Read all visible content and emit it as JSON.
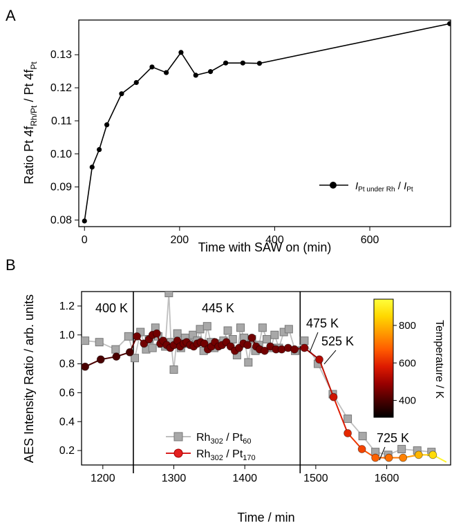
{
  "chart_data": [
    {
      "panel_label": "A",
      "type": "line",
      "xlabel": "Time with SAW on (min)",
      "ylabel": {
        "base": "Ratio Pt 4f",
        "sub1": "Rh/Pt",
        "mid": " / Pt 4f",
        "sub2": "Pt"
      },
      "xlim": [
        -12,
        770
      ],
      "ylim": [
        0.078,
        0.1405
      ],
      "xticks": [
        0,
        200,
        400,
        600
      ],
      "yticks": [
        0.08,
        0.09,
        0.1,
        0.11,
        0.12,
        0.13
      ],
      "ytick_labels": [
        "0.08",
        "0.09",
        "0.10",
        "0.11",
        "0.12",
        "0.13"
      ],
      "xtick_labels": [
        "0",
        "200",
        "400",
        "600"
      ],
      "series": [
        {
          "name_parts": {
            "a": "I",
            "b": "Pt under Rh",
            "c": " / ",
            "d": "I",
            "e": "Pt"
          },
          "color": "#000000",
          "x": [
            0,
            16,
            31,
            47,
            78,
            109,
            142,
            172,
            203,
            234,
            265,
            297,
            333,
            368,
            768
          ],
          "y": [
            0.0797,
            0.096,
            0.1013,
            0.1088,
            0.1182,
            0.1216,
            0.1263,
            0.1246,
            0.1307,
            0.1238,
            0.1249,
            0.1275,
            0.1275,
            0.1274,
            0.1394
          ]
        }
      ],
      "legend": "bottom-right"
    },
    {
      "panel_label": "B",
      "type": "line",
      "xlabel": "Time / min",
      "ylabel": "AES Intensity Ratio / arb. units",
      "xlim": [
        1170,
        1690
      ],
      "ylim": [
        0.1,
        1.3
      ],
      "xticks": [
        1200,
        1300,
        1400,
        1500,
        1600
      ],
      "xtick_labels": [
        "1200",
        "1300",
        "1400",
        "1500",
        "1600"
      ],
      "yticks": [
        0.2,
        0.4,
        0.6,
        0.8,
        1.0,
        1.2
      ],
      "ytick_labels": [
        "0.2",
        "0.4",
        "0.6",
        "0.8",
        "1.0",
        "1.2"
      ],
      "region_lines": [
        1243,
        1478
      ],
      "region_labels": [
        "400 K",
        "445 K"
      ],
      "annotations": [
        "475 K",
        "525 K",
        "725 K"
      ],
      "series": [
        {
          "name_parts": {
            "a": "Rh",
            "b": "302",
            "c": " / Pt",
            "d": "60"
          },
          "color": "#bfbfbf",
          "marker": "square",
          "x": [
            1175,
            1195,
            1218,
            1236,
            1245,
            1253,
            1261,
            1265,
            1270,
            1274,
            1278,
            1283,
            1288,
            1293,
            1296,
            1300,
            1305,
            1310,
            1316,
            1321,
            1327,
            1333,
            1337,
            1342,
            1347,
            1352,
            1357,
            1364,
            1370,
            1376,
            1383,
            1389,
            1394,
            1399,
            1405,
            1410,
            1415,
            1420,
            1425,
            1431,
            1437,
            1442,
            1448,
            1455,
            1462,
            1471,
            1484,
            1503,
            1524,
            1545,
            1566,
            1584,
            1602,
            1621,
            1643,
            1663
          ],
          "y": [
            0.96,
            0.95,
            0.9,
            0.99,
            0.84,
            1.02,
            0.9,
            0.97,
            0.91,
            1.05,
            0.99,
            0.94,
            0.92,
            1.29,
            0.95,
            0.76,
            1.01,
            0.91,
            0.98,
            0.94,
            1.0,
            0.96,
            1.04,
            0.89,
            1.06,
            0.95,
            0.91,
            0.94,
            0.96,
            1.03,
            0.97,
            0.86,
            1.05,
            0.98,
            0.81,
            0.97,
            0.89,
            0.93,
            1.05,
            0.97,
            0.91,
            1.0,
            0.91,
            1.02,
            1.04,
            0.89,
            0.96,
            0.8,
            0.59,
            0.42,
            0.3,
            0.19,
            0.17,
            0.21,
            0.2,
            0.19
          ]
        },
        {
          "name_parts": {
            "a": "Rh",
            "b": "302",
            "c": " / Pt",
            "d": "170"
          },
          "color": "#d81e1e",
          "marker": "circle",
          "x": [
            1175,
            1197,
            1219,
            1238,
            1248,
            1258,
            1265,
            1270,
            1276,
            1281,
            1285,
            1290,
            1295,
            1300,
            1305,
            1309,
            1314,
            1318,
            1323,
            1328,
            1333,
            1338,
            1343,
            1348,
            1353,
            1358,
            1363,
            1368,
            1374,
            1380,
            1386,
            1392,
            1398,
            1404,
            1410,
            1416,
            1421,
            1428,
            1436,
            1444,
            1452,
            1461,
            1470,
            1484,
            1505,
            1525,
            1545,
            1565,
            1584,
            1603,
            1623,
            1645,
            1665
          ],
          "y": [
            0.78,
            0.83,
            0.85,
            0.88,
            0.99,
            0.94,
            0.97,
            1.0,
            1.01,
            0.94,
            0.96,
            0.93,
            0.91,
            0.93,
            0.96,
            0.92,
            0.94,
            0.95,
            0.93,
            0.92,
            0.94,
            0.95,
            0.94,
            0.9,
            0.92,
            0.95,
            0.92,
            0.93,
            0.95,
            0.92,
            0.89,
            0.91,
            0.94,
            0.93,
            0.98,
            0.92,
            0.9,
            0.89,
            0.92,
            0.9,
            0.9,
            0.91,
            0.9,
            0.91,
            0.83,
            0.57,
            0.32,
            0.21,
            0.15,
            0.15,
            0.15,
            0.17,
            0.17
          ],
          "temperatures": [
            400,
            400,
            400,
            400,
            445,
            445,
            445,
            445,
            445,
            445,
            445,
            445,
            445,
            445,
            445,
            445,
            445,
            445,
            445,
            445,
            445,
            445,
            445,
            445,
            445,
            445,
            445,
            445,
            445,
            445,
            445,
            445,
            445,
            445,
            445,
            445,
            445,
            445,
            445,
            445,
            445,
            445,
            445,
            475,
            525,
            560,
            600,
            640,
            680,
            700,
            725,
            800,
            860
          ]
        }
      ],
      "colorbar": {
        "label": "Temperature / K",
        "range": [
          310,
          940
        ],
        "ticks": [
          400,
          600,
          800
        ],
        "tick_labels": [
          "400",
          "600",
          "800"
        ],
        "colors": [
          "#000000",
          "#4a0000",
          "#990000",
          "#dd1a00",
          "#ff5a00",
          "#ff9a00",
          "#ffd800",
          "#ffff3c"
        ]
      },
      "legend": "bottom-left"
    }
  ]
}
